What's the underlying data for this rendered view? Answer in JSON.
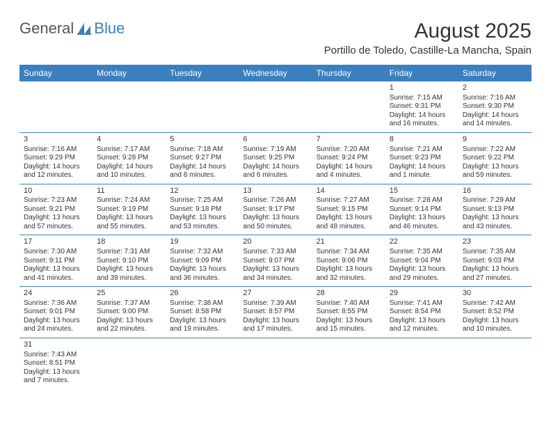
{
  "logo": {
    "text1": "General",
    "text2": "Blue",
    "icon_color": "#3b7fbf"
  },
  "title": "August 2025",
  "location": "Portillo de Toledo, Castille-La Mancha, Spain",
  "colors": {
    "header_bg": "#3b7fbf",
    "header_text": "#ffffff",
    "rule": "#3b7fbf",
    "text": "#333333",
    "bg": "#ffffff"
  },
  "day_names": [
    "Sunday",
    "Monday",
    "Tuesday",
    "Wednesday",
    "Thursday",
    "Friday",
    "Saturday"
  ],
  "weeks": [
    [
      null,
      null,
      null,
      null,
      null,
      {
        "n": "1",
        "sr": "Sunrise: 7:15 AM",
        "ss": "Sunset: 9:31 PM",
        "d1": "Daylight: 14 hours",
        "d2": "and 16 minutes."
      },
      {
        "n": "2",
        "sr": "Sunrise: 7:16 AM",
        "ss": "Sunset: 9:30 PM",
        "d1": "Daylight: 14 hours",
        "d2": "and 14 minutes."
      }
    ],
    [
      {
        "n": "3",
        "sr": "Sunrise: 7:16 AM",
        "ss": "Sunset: 9:29 PM",
        "d1": "Daylight: 14 hours",
        "d2": "and 12 minutes."
      },
      {
        "n": "4",
        "sr": "Sunrise: 7:17 AM",
        "ss": "Sunset: 9:28 PM",
        "d1": "Daylight: 14 hours",
        "d2": "and 10 minutes."
      },
      {
        "n": "5",
        "sr": "Sunrise: 7:18 AM",
        "ss": "Sunset: 9:27 PM",
        "d1": "Daylight: 14 hours",
        "d2": "and 8 minutes."
      },
      {
        "n": "6",
        "sr": "Sunrise: 7:19 AM",
        "ss": "Sunset: 9:25 PM",
        "d1": "Daylight: 14 hours",
        "d2": "and 6 minutes."
      },
      {
        "n": "7",
        "sr": "Sunrise: 7:20 AM",
        "ss": "Sunset: 9:24 PM",
        "d1": "Daylight: 14 hours",
        "d2": "and 4 minutes."
      },
      {
        "n": "8",
        "sr": "Sunrise: 7:21 AM",
        "ss": "Sunset: 9:23 PM",
        "d1": "Daylight: 14 hours",
        "d2": "and 1 minute."
      },
      {
        "n": "9",
        "sr": "Sunrise: 7:22 AM",
        "ss": "Sunset: 9:22 PM",
        "d1": "Daylight: 13 hours",
        "d2": "and 59 minutes."
      }
    ],
    [
      {
        "n": "10",
        "sr": "Sunrise: 7:23 AM",
        "ss": "Sunset: 9:21 PM",
        "d1": "Daylight: 13 hours",
        "d2": "and 57 minutes."
      },
      {
        "n": "11",
        "sr": "Sunrise: 7:24 AM",
        "ss": "Sunset: 9:19 PM",
        "d1": "Daylight: 13 hours",
        "d2": "and 55 minutes."
      },
      {
        "n": "12",
        "sr": "Sunrise: 7:25 AM",
        "ss": "Sunset: 9:18 PM",
        "d1": "Daylight: 13 hours",
        "d2": "and 53 minutes."
      },
      {
        "n": "13",
        "sr": "Sunrise: 7:26 AM",
        "ss": "Sunset: 9:17 PM",
        "d1": "Daylight: 13 hours",
        "d2": "and 50 minutes."
      },
      {
        "n": "14",
        "sr": "Sunrise: 7:27 AM",
        "ss": "Sunset: 9:15 PM",
        "d1": "Daylight: 13 hours",
        "d2": "and 48 minutes."
      },
      {
        "n": "15",
        "sr": "Sunrise: 7:28 AM",
        "ss": "Sunset: 9:14 PM",
        "d1": "Daylight: 13 hours",
        "d2": "and 46 minutes."
      },
      {
        "n": "16",
        "sr": "Sunrise: 7:29 AM",
        "ss": "Sunset: 9:13 PM",
        "d1": "Daylight: 13 hours",
        "d2": "and 43 minutes."
      }
    ],
    [
      {
        "n": "17",
        "sr": "Sunrise: 7:30 AM",
        "ss": "Sunset: 9:11 PM",
        "d1": "Daylight: 13 hours",
        "d2": "and 41 minutes."
      },
      {
        "n": "18",
        "sr": "Sunrise: 7:31 AM",
        "ss": "Sunset: 9:10 PM",
        "d1": "Daylight: 13 hours",
        "d2": "and 39 minutes."
      },
      {
        "n": "19",
        "sr": "Sunrise: 7:32 AM",
        "ss": "Sunset: 9:09 PM",
        "d1": "Daylight: 13 hours",
        "d2": "and 36 minutes."
      },
      {
        "n": "20",
        "sr": "Sunrise: 7:33 AM",
        "ss": "Sunset: 9:07 PM",
        "d1": "Daylight: 13 hours",
        "d2": "and 34 minutes."
      },
      {
        "n": "21",
        "sr": "Sunrise: 7:34 AM",
        "ss": "Sunset: 9:06 PM",
        "d1": "Daylight: 13 hours",
        "d2": "and 32 minutes."
      },
      {
        "n": "22",
        "sr": "Sunrise: 7:35 AM",
        "ss": "Sunset: 9:04 PM",
        "d1": "Daylight: 13 hours",
        "d2": "and 29 minutes."
      },
      {
        "n": "23",
        "sr": "Sunrise: 7:35 AM",
        "ss": "Sunset: 9:03 PM",
        "d1": "Daylight: 13 hours",
        "d2": "and 27 minutes."
      }
    ],
    [
      {
        "n": "24",
        "sr": "Sunrise: 7:36 AM",
        "ss": "Sunset: 9:01 PM",
        "d1": "Daylight: 13 hours",
        "d2": "and 24 minutes."
      },
      {
        "n": "25",
        "sr": "Sunrise: 7:37 AM",
        "ss": "Sunset: 9:00 PM",
        "d1": "Daylight: 13 hours",
        "d2": "and 22 minutes."
      },
      {
        "n": "26",
        "sr": "Sunrise: 7:38 AM",
        "ss": "Sunset: 8:58 PM",
        "d1": "Daylight: 13 hours",
        "d2": "and 19 minutes."
      },
      {
        "n": "27",
        "sr": "Sunrise: 7:39 AM",
        "ss": "Sunset: 8:57 PM",
        "d1": "Daylight: 13 hours",
        "d2": "and 17 minutes."
      },
      {
        "n": "28",
        "sr": "Sunrise: 7:40 AM",
        "ss": "Sunset: 8:55 PM",
        "d1": "Daylight: 13 hours",
        "d2": "and 15 minutes."
      },
      {
        "n": "29",
        "sr": "Sunrise: 7:41 AM",
        "ss": "Sunset: 8:54 PM",
        "d1": "Daylight: 13 hours",
        "d2": "and 12 minutes."
      },
      {
        "n": "30",
        "sr": "Sunrise: 7:42 AM",
        "ss": "Sunset: 8:52 PM",
        "d1": "Daylight: 13 hours",
        "d2": "and 10 minutes."
      }
    ],
    [
      {
        "n": "31",
        "sr": "Sunrise: 7:43 AM",
        "ss": "Sunset: 8:51 PM",
        "d1": "Daylight: 13 hours",
        "d2": "and 7 minutes."
      },
      null,
      null,
      null,
      null,
      null,
      null
    ]
  ]
}
